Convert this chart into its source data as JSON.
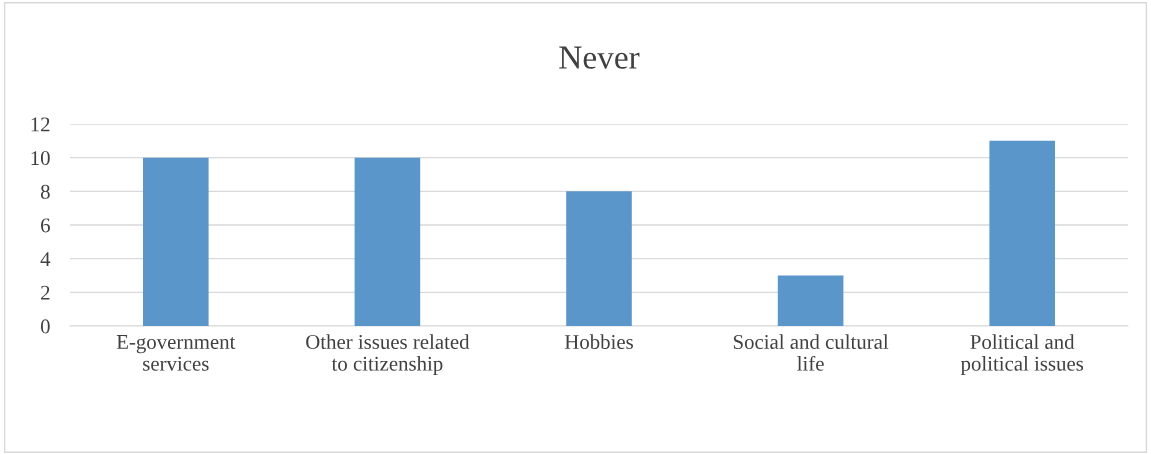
{
  "chart_data": {
    "type": "bar",
    "title": "Never",
    "categories": [
      "E-government services",
      "Other issues related to citizenship",
      "Hobbies",
      "Social and cultural life",
      "Political and political issues"
    ],
    "values": [
      10,
      10,
      8,
      3,
      11
    ],
    "color": "#5b96cb",
    "ylim": [
      0,
      12
    ],
    "yticks": [
      0,
      2,
      4,
      6,
      8,
      10,
      12
    ],
    "grid": "y"
  }
}
